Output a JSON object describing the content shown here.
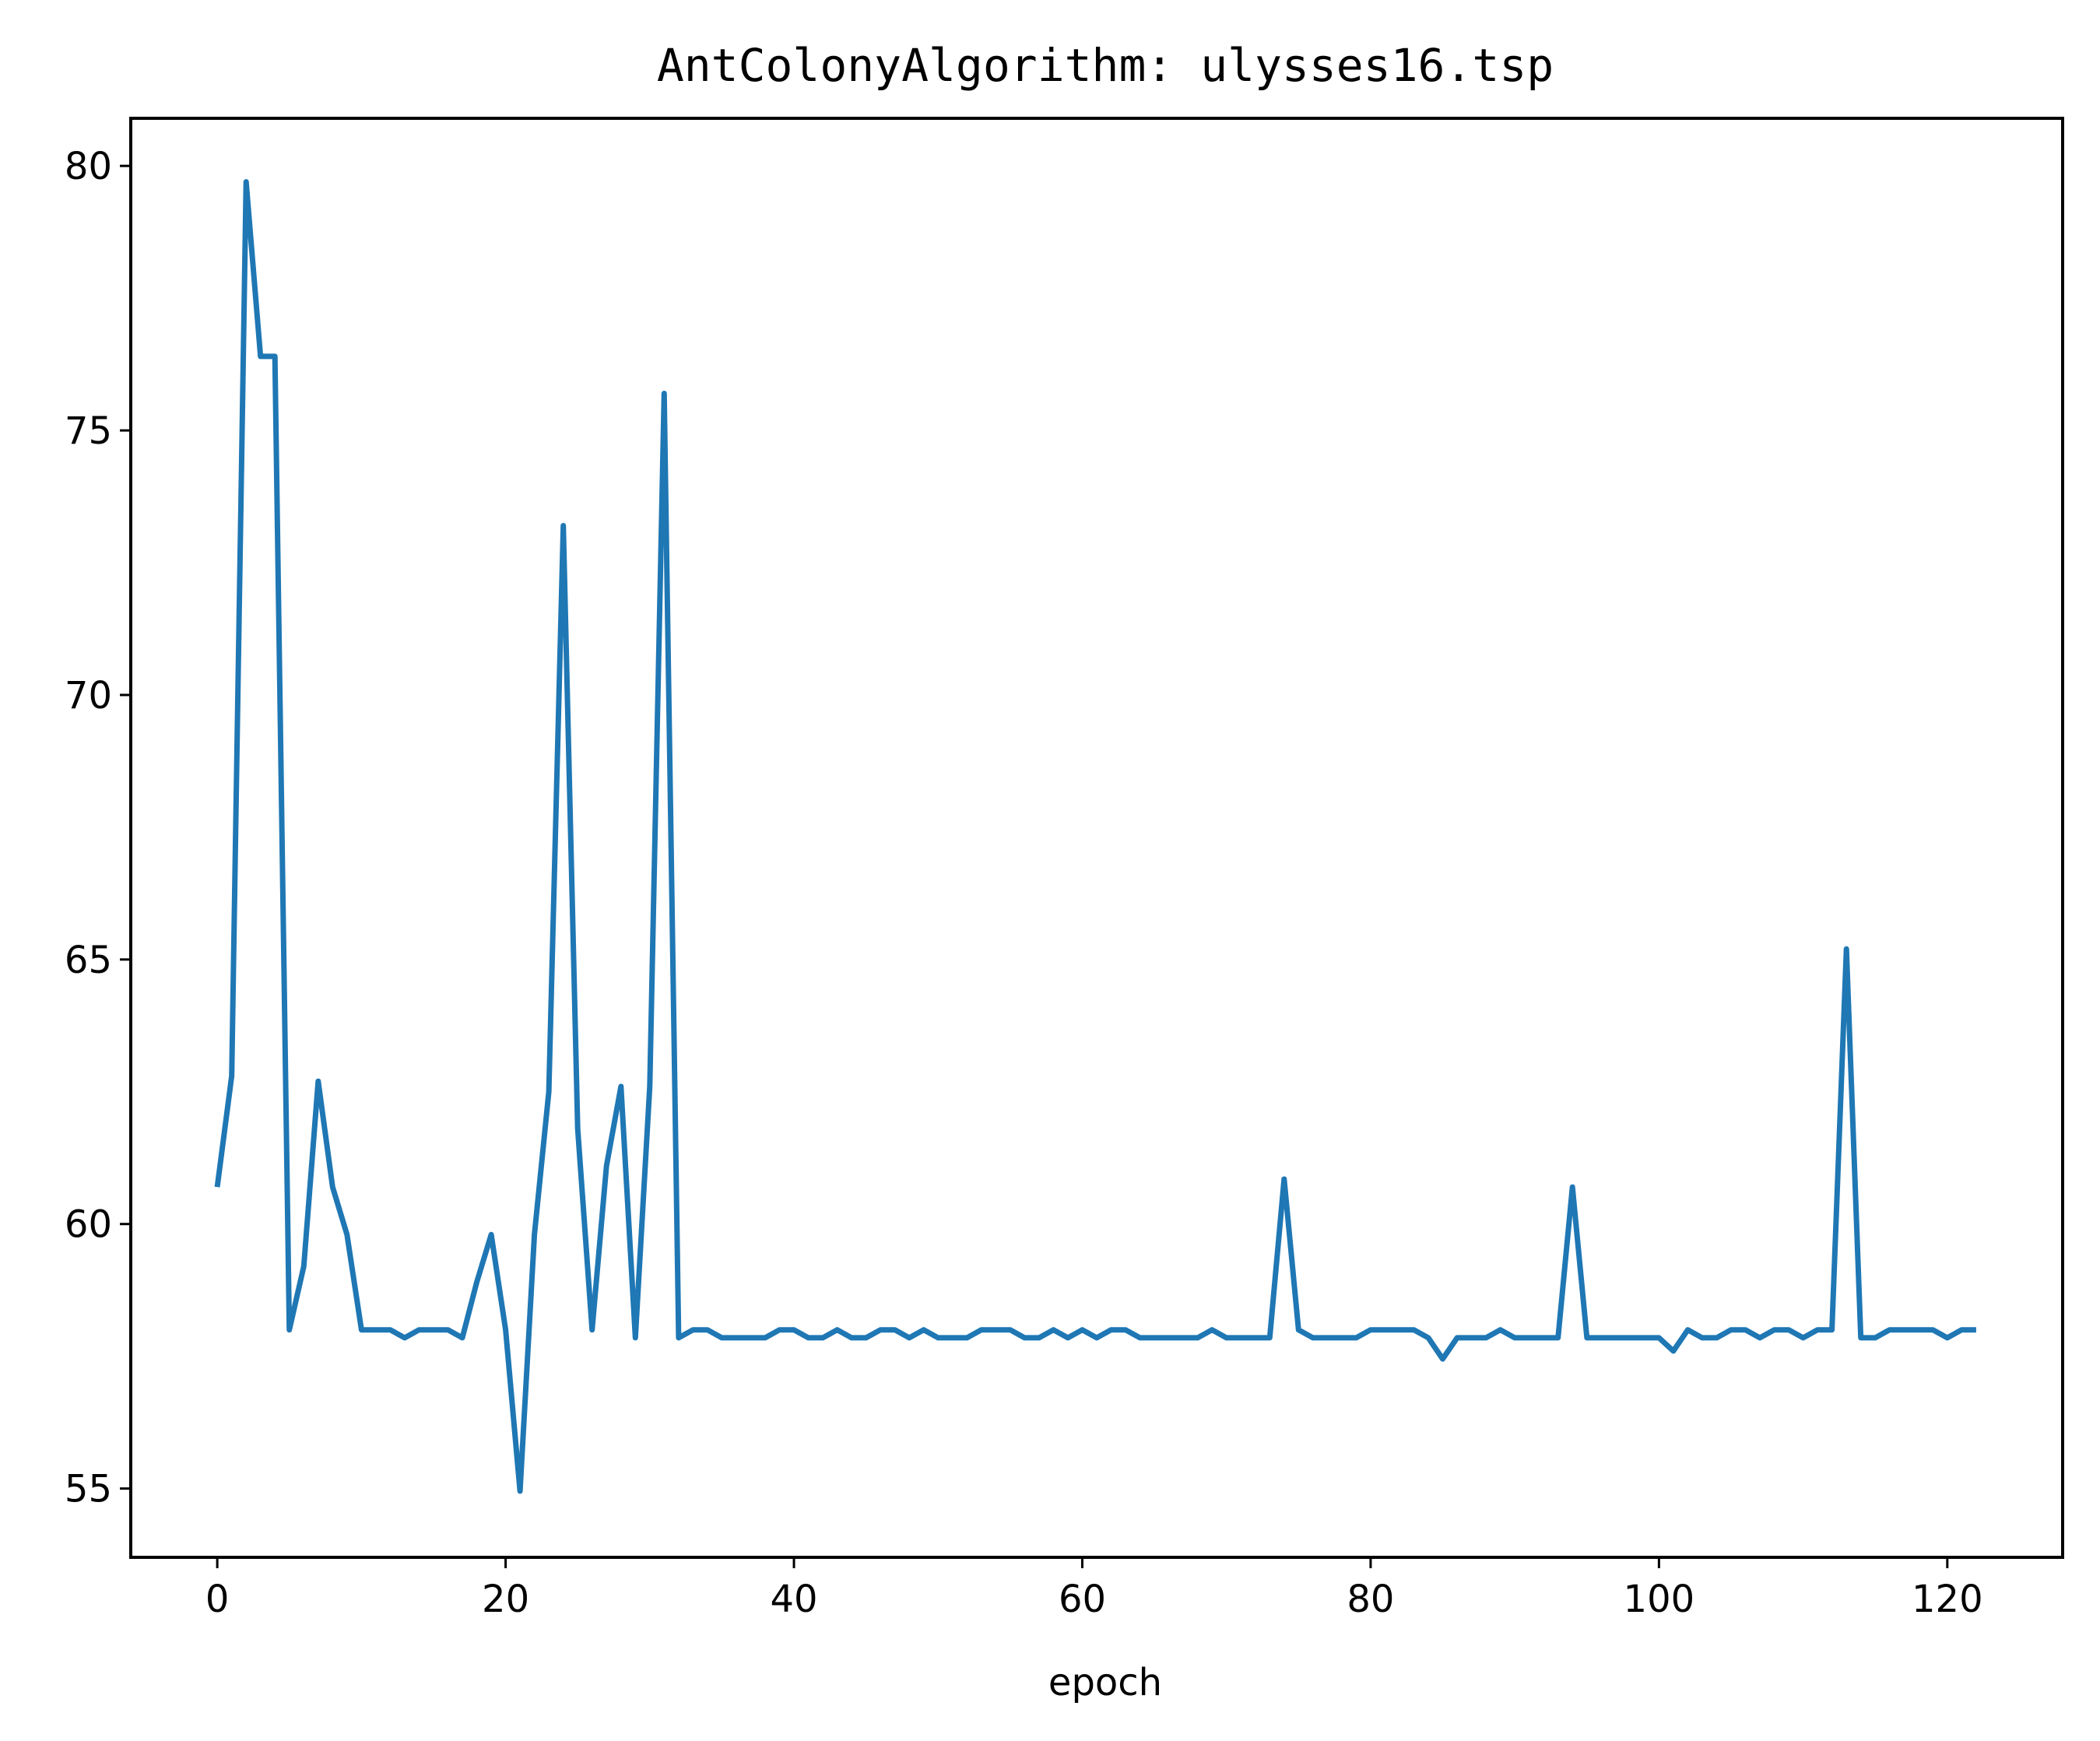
{
  "chart_data": {
    "type": "line",
    "title": "AntColonyAlgorithm: ulysses16.tsp",
    "xlabel": "epoch",
    "ylabel": "",
    "xlim": [
      -6,
      128
    ],
    "ylim": [
      53.7,
      80.9
    ],
    "xticks": [
      0,
      20,
      40,
      60,
      80,
      100,
      120
    ],
    "yticks": [
      55,
      60,
      65,
      70,
      75,
      80
    ],
    "grid": false,
    "line_color": "#1f77b4",
    "x_start": 0,
    "series": [
      {
        "values": [
          60.7,
          62.8,
          79.7,
          76.4,
          76.4,
          58.0,
          59.2,
          62.7,
          60.7,
          59.8,
          58.0,
          58.0,
          58.0,
          57.85,
          58.0,
          58.0,
          58.0,
          57.85,
          58.9,
          59.8,
          58.0,
          54.95,
          59.8,
          62.5,
          73.2,
          61.8,
          58.0,
          61.1,
          62.6,
          57.85,
          62.6,
          75.7,
          57.85,
          58.0,
          58.0,
          57.85,
          57.85,
          57.85,
          57.85,
          58.0,
          58.0,
          57.85,
          57.85,
          58.0,
          57.85,
          57.85,
          58.0,
          58.0,
          57.85,
          58.0,
          57.85,
          57.85,
          57.85,
          58.0,
          58.0,
          58.0,
          57.85,
          57.85,
          58.0,
          57.85,
          58.0,
          57.85,
          58.0,
          58.0,
          57.85,
          57.85,
          57.85,
          57.85,
          57.85,
          58.0,
          57.85,
          57.85,
          57.85,
          57.85,
          60.85,
          58.0,
          57.85,
          57.85,
          57.85,
          57.85,
          58.0,
          58.0,
          58.0,
          58.0,
          57.85,
          57.45,
          57.85,
          57.85,
          57.85,
          58.0,
          57.85,
          57.85,
          57.85,
          57.85,
          60.7,
          57.85,
          57.85,
          57.85,
          57.85,
          57.85,
          57.85,
          57.6,
          58.0,
          57.85,
          57.85,
          58.0,
          58.0,
          57.85,
          58.0,
          58.0,
          57.85,
          58.0,
          58.0,
          65.2,
          57.85,
          57.85,
          58.0,
          58.0,
          58.0,
          58.0,
          57.85,
          58.0,
          58.0
        ]
      }
    ]
  }
}
